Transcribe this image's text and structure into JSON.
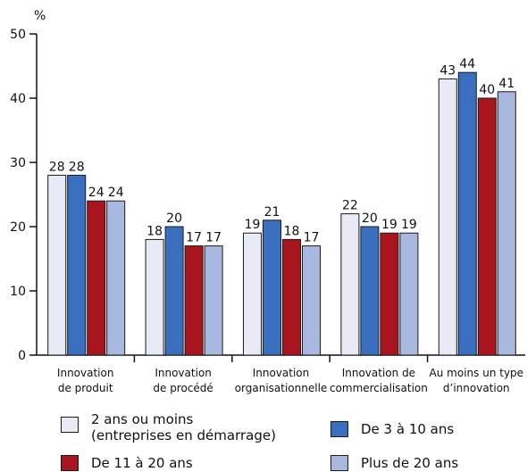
{
  "chart_data": {
    "type": "bar",
    "unit": "%",
    "ylim": [
      0,
      50
    ],
    "yticks": [
      0,
      10,
      20,
      30,
      40,
      50
    ],
    "categories": [
      "Innovation\nde produit",
      "Innovation\nde procédé",
      "Innovation\norganisationnelle",
      "Innovation de\ncommercialisation",
      "Au moins un type\nd’innovation"
    ],
    "series": [
      {
        "name": "2 ans ou moins\n(entreprises en démarrage)",
        "color": "#e8eaf5",
        "values": [
          28,
          18,
          19,
          22,
          43
        ]
      },
      {
        "name": "De 3 à 10 ans",
        "color": "#3a6fc0",
        "values": [
          28,
          20,
          21,
          20,
          44
        ]
      },
      {
        "name": "De 11 à 20 ans",
        "color": "#a8151f",
        "values": [
          24,
          17,
          18,
          19,
          40
        ]
      },
      {
        "name": "Plus de 20 ans",
        "color": "#a9b8de",
        "values": [
          24,
          17,
          17,
          19,
          41
        ]
      }
    ],
    "legend_position": "bottom",
    "grid": false
  }
}
